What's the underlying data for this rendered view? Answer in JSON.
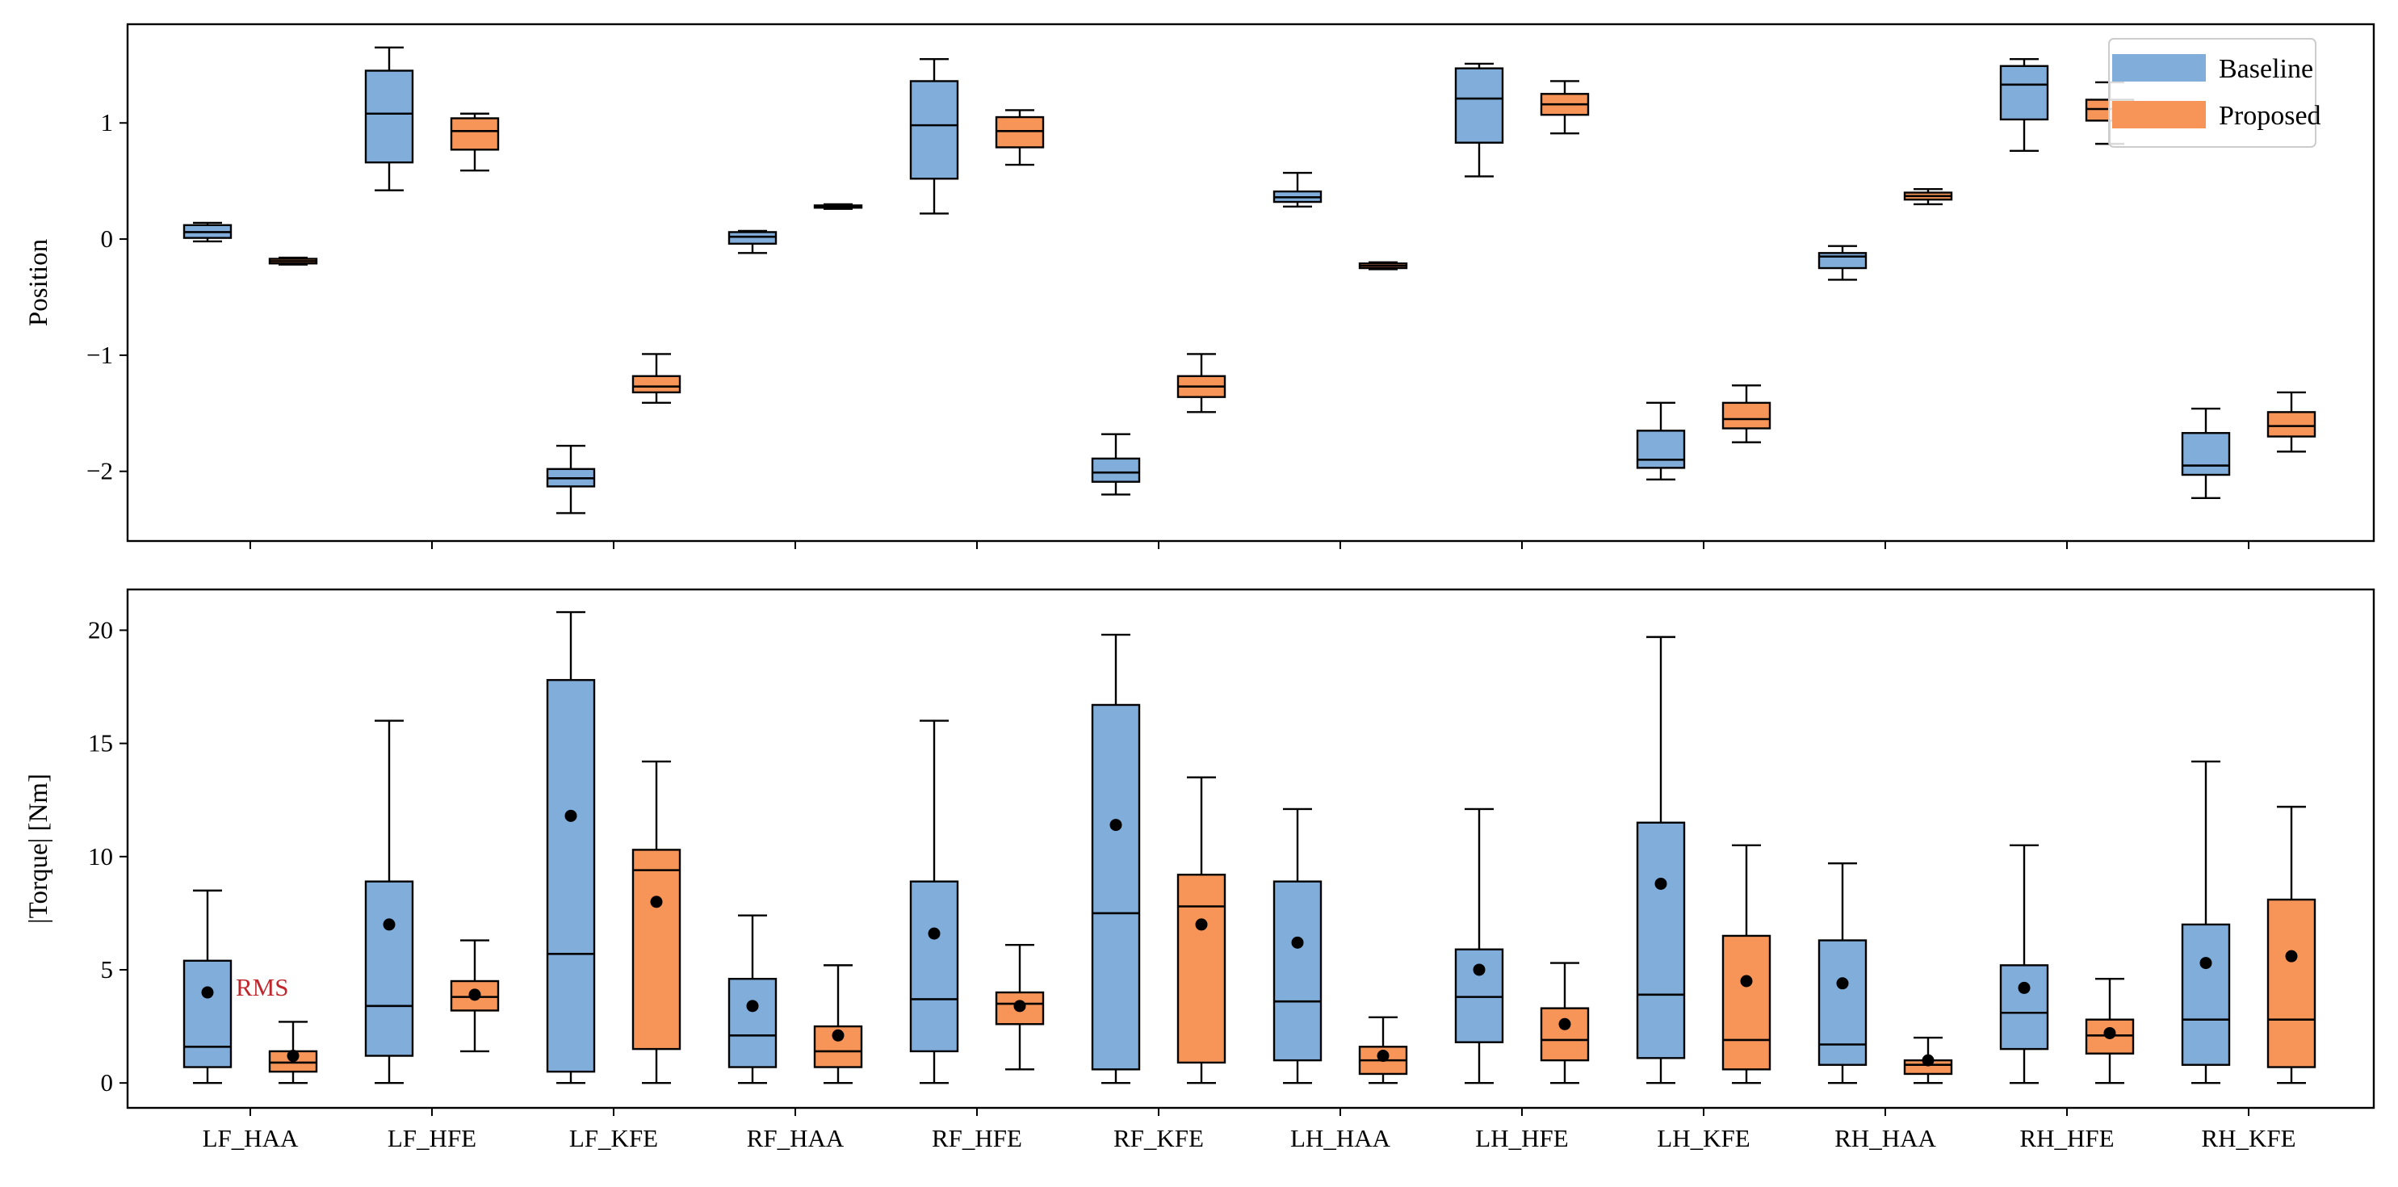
{
  "colors": {
    "baseline": "#81ADDB",
    "proposed": "#F79559",
    "median": "#000000",
    "annotation": "#C0272D"
  },
  "legend": {
    "placement": "top-right",
    "entries": [
      "Baseline",
      "Proposed"
    ]
  },
  "chart_data": [
    {
      "type": "boxplot",
      "ylabel": "Position",
      "ylim": [
        -2.6,
        1.85
      ],
      "yticks": [
        1,
        0,
        -1,
        -2
      ],
      "ytick_labels": [
        "1",
        "0",
        "−1",
        "−2"
      ],
      "categories": [
        "LF_HAA",
        "LF_HFE",
        "LF_KFE",
        "RF_HAA",
        "RF_HFE",
        "RF_KFE",
        "LH_HAA",
        "LH_HFE",
        "LH_KFE",
        "RH_HAA",
        "RH_HFE",
        "RH_KFE"
      ],
      "series": [
        {
          "name": "Baseline",
          "boxes": [
            {
              "whislo": -0.02,
              "q1": 0.01,
              "med": 0.06,
              "q3": 0.12,
              "whishi": 0.14
            },
            {
              "whislo": 0.42,
              "q1": 0.66,
              "med": 1.08,
              "q3": 1.45,
              "whishi": 1.65
            },
            {
              "whislo": -2.36,
              "q1": -2.13,
              "med": -2.06,
              "q3": -1.98,
              "whishi": -1.78
            },
            {
              "whislo": -0.12,
              "q1": -0.04,
              "med": 0.02,
              "q3": 0.06,
              "whishi": 0.07
            },
            {
              "whislo": 0.22,
              "q1": 0.52,
              "med": 0.98,
              "q3": 1.36,
              "whishi": 1.55
            },
            {
              "whislo": -2.2,
              "q1": -2.09,
              "med": -2.01,
              "q3": -1.89,
              "whishi": -1.68
            },
            {
              "whislo": 0.28,
              "q1": 0.32,
              "med": 0.36,
              "q3": 0.41,
              "whishi": 0.57
            },
            {
              "whislo": 0.54,
              "q1": 0.83,
              "med": 1.21,
              "q3": 1.47,
              "whishi": 1.51
            },
            {
              "whislo": -2.07,
              "q1": -1.97,
              "med": -1.9,
              "q3": -1.65,
              "whishi": -1.41
            },
            {
              "whislo": -0.35,
              "q1": -0.25,
              "med": -0.15,
              "q3": -0.12,
              "whishi": -0.06
            },
            {
              "whislo": 0.76,
              "q1": 1.03,
              "med": 1.33,
              "q3": 1.49,
              "whishi": 1.55
            },
            {
              "whislo": -2.23,
              "q1": -2.03,
              "med": -1.95,
              "q3": -1.67,
              "whishi": -1.46
            }
          ]
        },
        {
          "name": "Proposed",
          "boxes": [
            {
              "whislo": -0.22,
              "q1": -0.21,
              "med": -0.19,
              "q3": -0.17,
              "whishi": -0.16
            },
            {
              "whislo": 0.59,
              "q1": 0.77,
              "med": 0.93,
              "q3": 1.04,
              "whishi": 1.08
            },
            {
              "whislo": -1.41,
              "q1": -1.32,
              "med": -1.27,
              "q3": -1.18,
              "whishi": -0.99
            },
            {
              "whislo": 0.26,
              "q1": 0.27,
              "med": 0.28,
              "q3": 0.29,
              "whishi": 0.3
            },
            {
              "whislo": 0.64,
              "q1": 0.79,
              "med": 0.93,
              "q3": 1.05,
              "whishi": 1.11
            },
            {
              "whislo": -1.49,
              "q1": -1.36,
              "med": -1.27,
              "q3": -1.18,
              "whishi": -0.99
            },
            {
              "whislo": -0.26,
              "q1": -0.25,
              "med": -0.23,
              "q3": -0.21,
              "whishi": -0.2
            },
            {
              "whislo": 0.91,
              "q1": 1.07,
              "med": 1.16,
              "q3": 1.25,
              "whishi": 1.36
            },
            {
              "whislo": -1.75,
              "q1": -1.63,
              "med": -1.55,
              "q3": -1.41,
              "whishi": -1.26
            },
            {
              "whislo": 0.3,
              "q1": 0.34,
              "med": 0.37,
              "q3": 0.4,
              "whishi": 0.43
            },
            {
              "whislo": 0.82,
              "q1": 1.02,
              "med": 1.12,
              "q3": 1.2,
              "whishi": 1.35
            },
            {
              "whislo": -1.83,
              "q1": -1.7,
              "med": -1.61,
              "q3": -1.49,
              "whishi": -1.32
            }
          ]
        }
      ]
    },
    {
      "type": "boxplot",
      "ylabel": "|Torque| [Nm]",
      "ylim": [
        -1.1,
        21.8
      ],
      "yticks": [
        0,
        5,
        10,
        15,
        20
      ],
      "ytick_labels": [
        "0",
        "5",
        "10",
        "15",
        "20"
      ],
      "categories": [
        "LF_HAA",
        "LF_HFE",
        "LF_KFE",
        "RF_HAA",
        "RF_HFE",
        "RF_KFE",
        "LH_HAA",
        "LH_HFE",
        "LH_KFE",
        "RH_HAA",
        "RH_HFE",
        "RH_KFE"
      ],
      "annotation": {
        "text": "RMS",
        "category": "LF_HAA"
      },
      "series": [
        {
          "name": "Baseline",
          "boxes": [
            {
              "whislo": 0,
              "q1": 0.7,
              "med": 1.6,
              "q3": 5.4,
              "whishi": 8.5,
              "rms": 4.0
            },
            {
              "whislo": 0,
              "q1": 1.2,
              "med": 3.4,
              "q3": 8.9,
              "whishi": 16.0,
              "rms": 7.0
            },
            {
              "whislo": 0,
              "q1": 0.5,
              "med": 5.7,
              "q3": 17.8,
              "whishi": 20.8,
              "rms": 11.8
            },
            {
              "whislo": 0,
              "q1": 0.7,
              "med": 2.1,
              "q3": 4.6,
              "whishi": 7.4,
              "rms": 3.4
            },
            {
              "whislo": 0,
              "q1": 1.4,
              "med": 3.7,
              "q3": 8.9,
              "whishi": 16.0,
              "rms": 6.6
            },
            {
              "whislo": 0,
              "q1": 0.6,
              "med": 7.5,
              "q3": 16.7,
              "whishi": 19.8,
              "rms": 11.4
            },
            {
              "whislo": 0,
              "q1": 1.0,
              "med": 3.6,
              "q3": 8.9,
              "whishi": 12.1,
              "rms": 6.2
            },
            {
              "whislo": 0,
              "q1": 1.8,
              "med": 3.8,
              "q3": 5.9,
              "whishi": 12.1,
              "rms": 5.0
            },
            {
              "whislo": 0,
              "q1": 1.1,
              "med": 3.9,
              "q3": 11.5,
              "whishi": 19.7,
              "rms": 8.8
            },
            {
              "whislo": 0,
              "q1": 0.8,
              "med": 1.7,
              "q3": 6.3,
              "whishi": 9.7,
              "rms": 4.4
            },
            {
              "whislo": 0,
              "q1": 1.5,
              "med": 3.1,
              "q3": 5.2,
              "whishi": 10.5,
              "rms": 4.2
            },
            {
              "whislo": 0,
              "q1": 0.8,
              "med": 2.8,
              "q3": 7.0,
              "whishi": 14.2,
              "rms": 5.3
            }
          ]
        },
        {
          "name": "Proposed",
          "boxes": [
            {
              "whislo": 0,
              "q1": 0.5,
              "med": 0.9,
              "q3": 1.4,
              "whishi": 2.7,
              "rms": 1.2
            },
            {
              "whislo": 1.4,
              "q1": 3.2,
              "med": 3.8,
              "q3": 4.5,
              "whishi": 6.3,
              "rms": 3.9
            },
            {
              "whislo": 0,
              "q1": 1.5,
              "med": 9.4,
              "q3": 10.3,
              "whishi": 14.2,
              "rms": 8.0
            },
            {
              "whislo": 0,
              "q1": 0.7,
              "med": 1.4,
              "q3": 2.5,
              "whishi": 5.2,
              "rms": 2.1
            },
            {
              "whislo": 0.6,
              "q1": 2.6,
              "med": 3.5,
              "q3": 4.0,
              "whishi": 6.1,
              "rms": 3.4
            },
            {
              "whislo": 0,
              "q1": 0.9,
              "med": 7.8,
              "q3": 9.2,
              "whishi": 13.5,
              "rms": 7.0
            },
            {
              "whislo": 0,
              "q1": 0.4,
              "med": 1.0,
              "q3": 1.6,
              "whishi": 2.9,
              "rms": 1.2
            },
            {
              "whislo": 0,
              "q1": 1.0,
              "med": 1.9,
              "q3": 3.3,
              "whishi": 5.3,
              "rms": 2.6
            },
            {
              "whislo": 0,
              "q1": 0.6,
              "med": 1.9,
              "q3": 6.5,
              "whishi": 10.5,
              "rms": 4.5
            },
            {
              "whislo": 0,
              "q1": 0.4,
              "med": 0.8,
              "q3": 1.0,
              "whishi": 2.0,
              "rms": 1.0
            },
            {
              "whislo": 0,
              "q1": 1.3,
              "med": 2.1,
              "q3": 2.8,
              "whishi": 4.6,
              "rms": 2.2
            },
            {
              "whislo": 0,
              "q1": 0.7,
              "med": 2.8,
              "q3": 8.1,
              "whishi": 12.2,
              "rms": 5.6
            }
          ]
        }
      ]
    }
  ]
}
